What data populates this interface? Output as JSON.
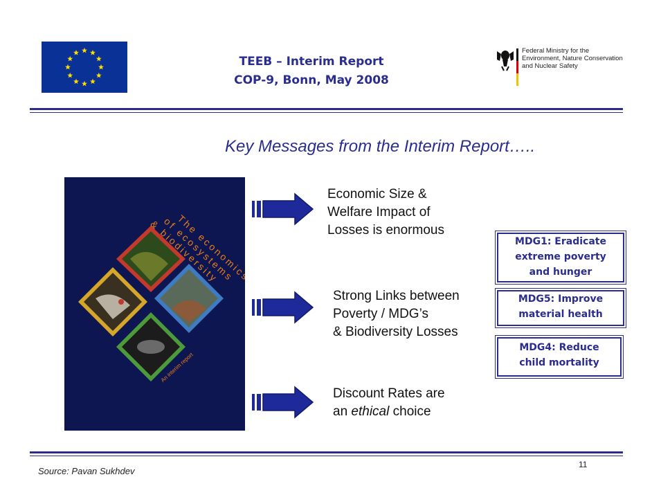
{
  "header": {
    "title_line1": "TEEB – Interim Report",
    "title_line2": "COP-9, Bonn, May 2008",
    "ministry_lines": "Federal Ministry for the\nEnvironment, Nature Conservation\nand Nuclear Safety",
    "flag_color": "#0a3296",
    "star_color": "#ffdd00"
  },
  "key_messages_title": "Key Messages from the Interim Report…..",
  "book": {
    "title_lines": [
      "The economics",
      "of ecosystems",
      "& biodiversity"
    ],
    "subtitle": "An interim report",
    "background": "#0d1650"
  },
  "messages": [
    {
      "lines": [
        "Economic Size &",
        "Welfare Impact of",
        "Losses is enormous"
      ]
    },
    {
      "lines": [
        "Strong Links between",
        "Poverty  / MDG’s",
        "& Biodiversity Losses"
      ]
    },
    {
      "line1": "Discount Rates are",
      "line2_prefix": "an ",
      "line2_emphasis": "ethical",
      "line2_suffix": " choice"
    }
  ],
  "mdg_boxes": [
    {
      "lines": [
        "MDG1: Eradicate",
        "extreme poverty",
        "and hunger"
      ]
    },
    {
      "lines": [
        "MDG5: Improve",
        "material health"
      ]
    },
    {
      "lines": [
        "MDG4: Reduce",
        "child mortality"
      ]
    }
  ],
  "footer": {
    "source": "Source:  Pavan Sukhdev",
    "page_number": "11"
  },
  "colors": {
    "accent": "#2a2d8f",
    "arrow_blue": "#1e2a9a"
  }
}
